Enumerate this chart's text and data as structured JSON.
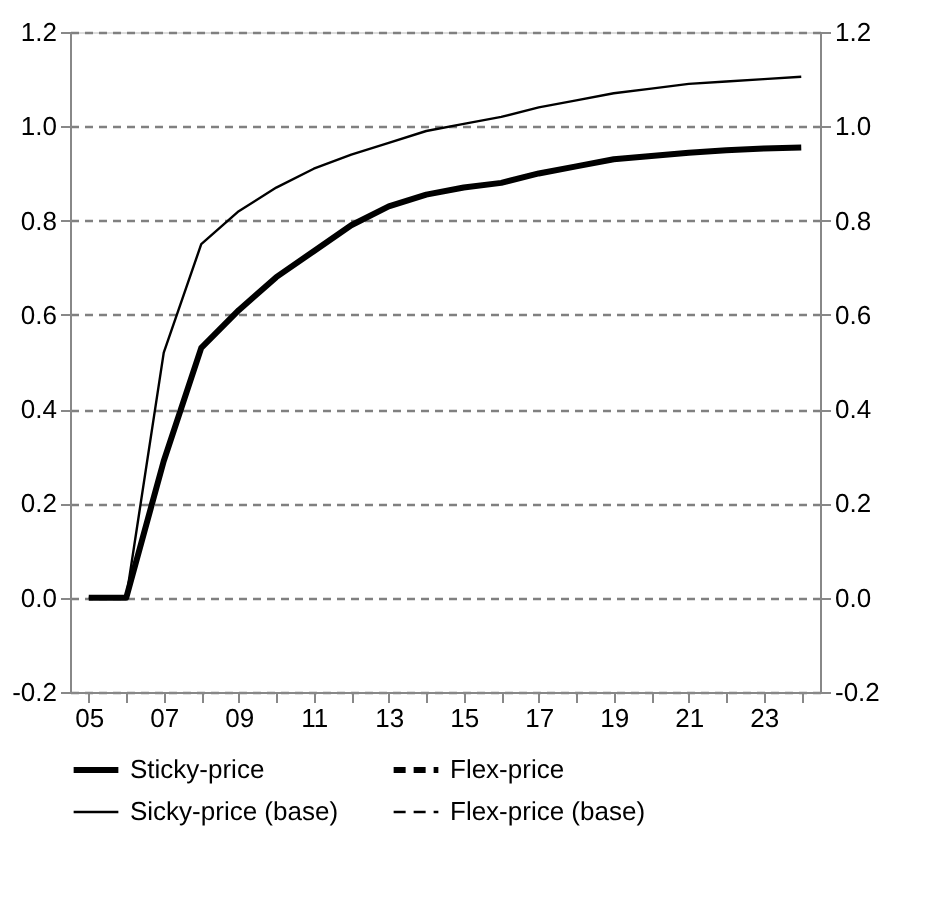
{
  "chart_data": {
    "type": "line",
    "categories": [
      "05",
      null,
      "07",
      null,
      "09",
      null,
      "11",
      null,
      "13",
      null,
      "15",
      null,
      "17",
      null,
      "19",
      null,
      "21",
      null,
      "23",
      null
    ],
    "series": [
      {
        "name": "Sticky-price",
        "color": "#000000",
        "line_style": "solid",
        "values": [
          0,
          0,
          0.29,
          0.53,
          0.61,
          0.68,
          0.735,
          0.79,
          0.83,
          0.855,
          0.87,
          0.88,
          0.9,
          0.915,
          0.93,
          0.937,
          0.944,
          0.949,
          0.953,
          0.955
        ]
      },
      {
        "name": "Flex-price",
        "color": "#000000",
        "line_style": "dashed",
        "values": [
          null,
          null,
          null,
          null,
          null,
          null,
          null,
          null,
          null,
          null,
          null,
          null,
          null,
          null,
          null,
          null,
          null,
          null,
          null,
          null
        ]
      },
      {
        "name": "Sicky-price (base)",
        "color": "#000000",
        "line_style": "solid",
        "values": [
          0,
          0,
          0.52,
          0.75,
          0.82,
          0.87,
          0.91,
          0.94,
          0.965,
          0.99,
          1.005,
          1.02,
          1.04,
          1.055,
          1.07,
          1.08,
          1.09,
          1.095,
          1.1,
          1.105
        ]
      },
      {
        "name": "Flex-price (base)",
        "color": "#000000",
        "line_style": "dashed",
        "values": [
          null,
          null,
          null,
          null,
          null,
          null,
          null,
          null,
          null,
          null,
          null,
          null,
          null,
          null,
          null,
          null,
          null,
          null,
          null,
          null
        ]
      }
    ],
    "ylim": [
      -0.2,
      1.2
    ],
    "yticks": [
      -0.2,
      {
        "value": 0,
        "label": "0.0"
      },
      0.2,
      0.4,
      0.6,
      0.8,
      {
        "value": 1,
        "label": "1.0"
      },
      1.2
    ],
    "y2lim": [
      -0.2,
      1.2
    ],
    "y2ticks": [
      -0.2,
      {
        "value": 0,
        "label": "0.0"
      },
      0.2,
      0.4,
      0.6,
      0.8,
      {
        "value": 1,
        "label": "1.0"
      },
      1.2
    ],
    "grid": "y",
    "legend": "bottom",
    "marker": "none"
  }
}
